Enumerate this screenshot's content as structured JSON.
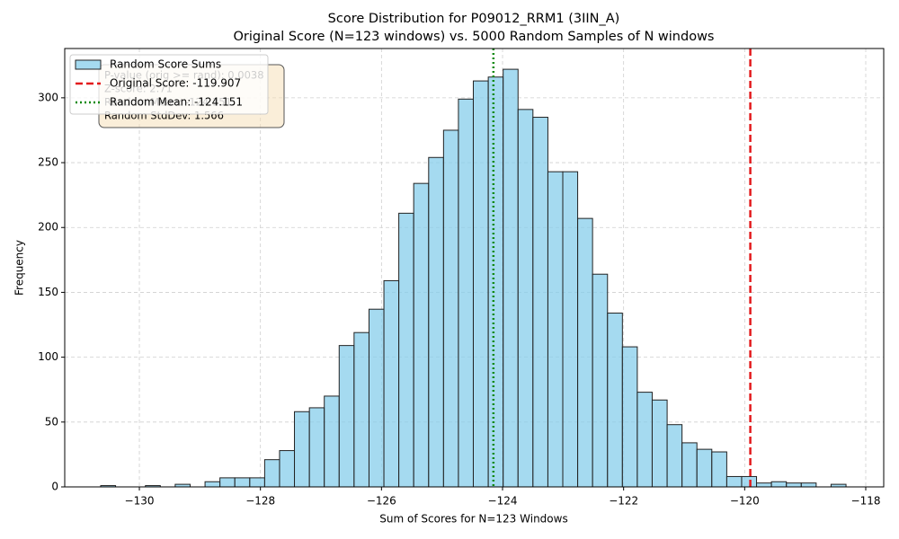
{
  "chart_data": {
    "type": "histogram",
    "title": "Score Distribution for P09012_RRM1 (3IIN_A)",
    "subtitle": "Original Score (N=123 windows) vs. 5000 Random Samples of N windows",
    "x_label": "Sum of Scores for N=123 Windows",
    "y_label": "Frequency",
    "bins": [
      -130.639,
      -130.393,
      -130.146,
      -129.9,
      -129.654,
      -129.408,
      -129.161,
      -128.915,
      -128.669,
      -128.423,
      -128.176,
      -127.93,
      -127.684,
      -127.438,
      -127.191,
      -126.945,
      -126.699,
      -126.453,
      -126.206,
      -125.96,
      -125.714,
      -125.468,
      -125.221,
      -124.975,
      -124.729,
      -124.483,
      -124.236,
      -123.99,
      -123.744,
      -123.498,
      -123.251,
      -123.005,
      -122.759,
      -122.513,
      -122.266,
      -122.02,
      -121.774,
      -121.528,
      -121.281,
      -121.035,
      -120.789,
      -120.543,
      -120.296,
      -120.05,
      -119.804,
      -119.558,
      -119.311,
      -119.065,
      -118.819,
      -118.573,
      -118.326
    ],
    "series": [
      {
        "name": "Random Score Sums",
        "color": "#87ceeb",
        "values": [
          1,
          0,
          0,
          1,
          0,
          2,
          0,
          4,
          7,
          7,
          7,
          21,
          28,
          58,
          61,
          70,
          109,
          119,
          137,
          159,
          211,
          234,
          254,
          275,
          299,
          313,
          316,
          322,
          291,
          285,
          243,
          243,
          207,
          164,
          134,
          108,
          73,
          67,
          48,
          34,
          29,
          27,
          8,
          8,
          3,
          4,
          3,
          3,
          0,
          2
        ]
      }
    ],
    "vlines": [
      {
        "name": "Original Score: -119.907",
        "value": -119.907,
        "color": "#e31a1c",
        "style": "dashed"
      },
      {
        "name": "Random Mean: -124.151",
        "value": -124.151,
        "color": "#138a13",
        "style": "dotted"
      }
    ],
    "stats_box": [
      "P-value (orig >= rand): 0.0038",
      "Z-score: 2.71",
      "Random Mean: -124.151",
      "Random StdDev: 1.566"
    ],
    "xlim": [
      -131.233,
      -117.703
    ],
    "ylim": [
      0,
      338
    ],
    "xticks": [
      {
        "value": -130,
        "label": "−130"
      },
      {
        "value": -128,
        "label": "−128"
      },
      {
        "value": -126,
        "label": "−126"
      },
      {
        "value": -124,
        "label": "−124"
      },
      {
        "value": -122,
        "label": "−122"
      },
      {
        "value": -120,
        "label": "−120"
      },
      {
        "value": -118,
        "label": "−118"
      }
    ],
    "yticks": [
      0,
      50,
      100,
      150,
      200,
      250,
      300
    ],
    "grid": true,
    "legend": "upper left"
  }
}
